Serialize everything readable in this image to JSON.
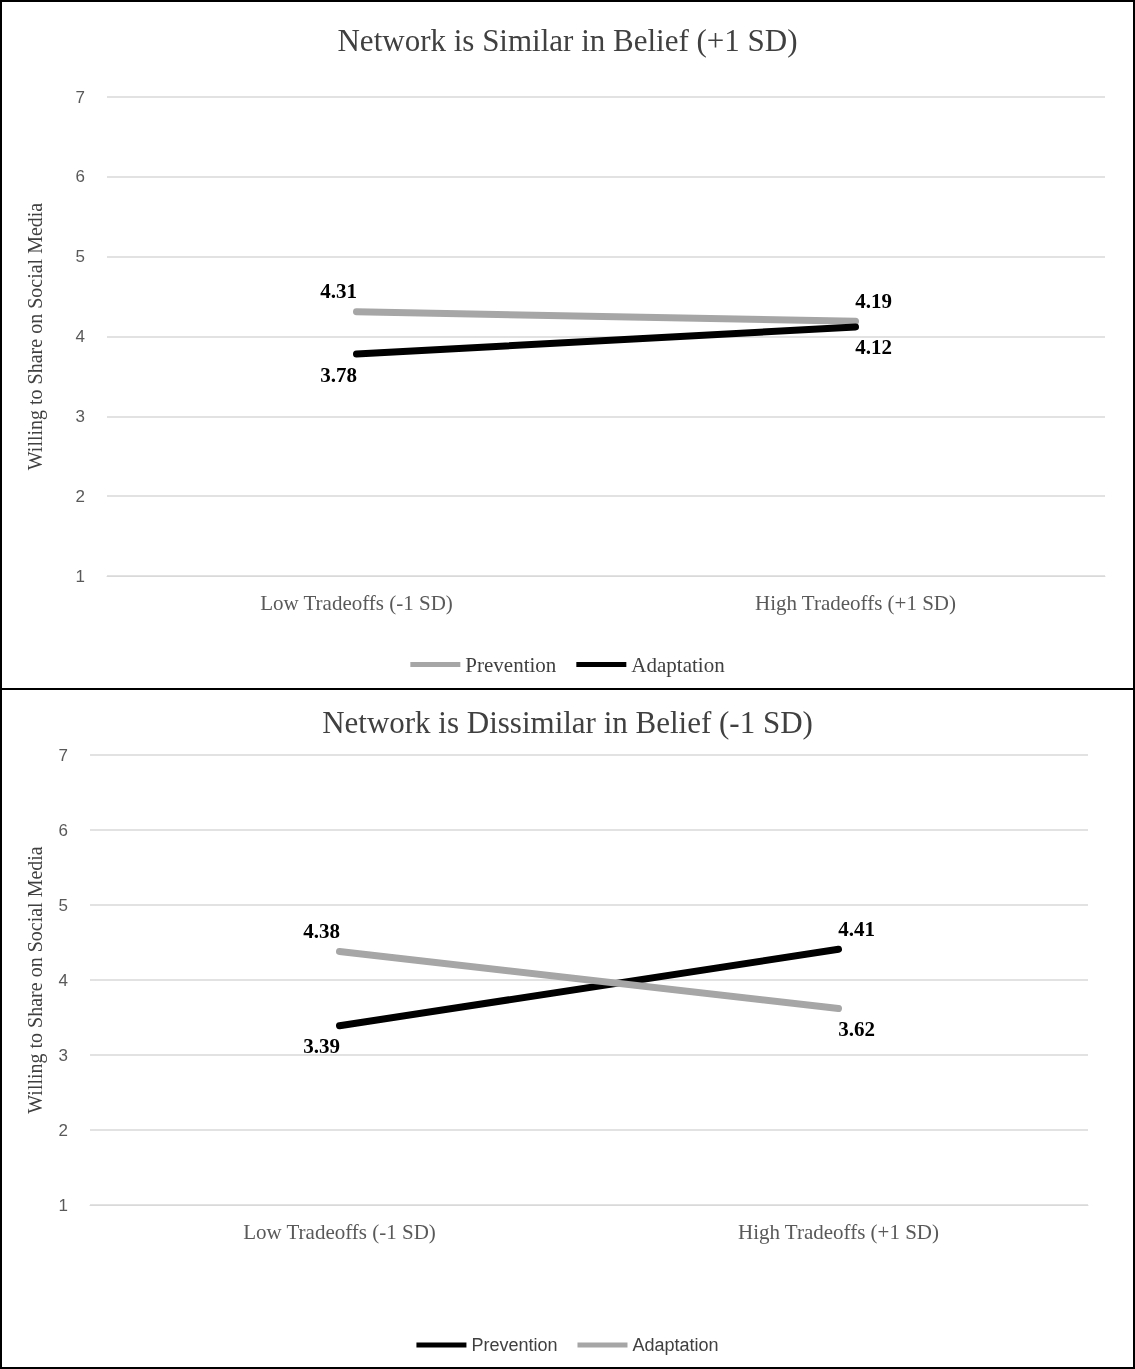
{
  "chart_data": [
    {
      "type": "line",
      "title": "Network is Similar in Belief (+1 SD)",
      "ylabel": "Willing to Share on Social Media",
      "categories": [
        "Low Tradeoffs (-1 SD)",
        "High Tradeoffs (+1 SD)"
      ],
      "series": [
        {
          "name": "Prevention",
          "color": "#a6a6a6",
          "values": [
            4.31,
            4.19
          ]
        },
        {
          "name": "Adaptation",
          "color": "#000000",
          "values": [
            3.78,
            4.12
          ]
        }
      ],
      "ylim": [
        1,
        7
      ],
      "yticks": [
        1,
        2,
        3,
        4,
        5,
        6,
        7
      ],
      "grid": "y",
      "legend": "bottom",
      "marker": "none",
      "line_style": "solid",
      "data_labels": true
    },
    {
      "type": "line",
      "title": "Network is Dissimilar in Belief (-1 SD)",
      "ylabel": "Willing to Share on Social Media",
      "categories": [
        "Low Tradeoffs (-1 SD)",
        "High Tradeoffs (+1 SD)"
      ],
      "series": [
        {
          "name": "Prevention",
          "color": "#000000",
          "values": [
            3.39,
            4.41
          ]
        },
        {
          "name": "Adaptation",
          "color": "#a6a6a6",
          "values": [
            4.38,
            3.62
          ]
        }
      ],
      "ylim": [
        1,
        7
      ],
      "yticks": [
        1,
        2,
        3,
        4,
        5,
        6,
        7
      ],
      "grid": "y",
      "legend": "bottom",
      "marker": "none",
      "line_style": "solid",
      "data_labels": true
    }
  ]
}
